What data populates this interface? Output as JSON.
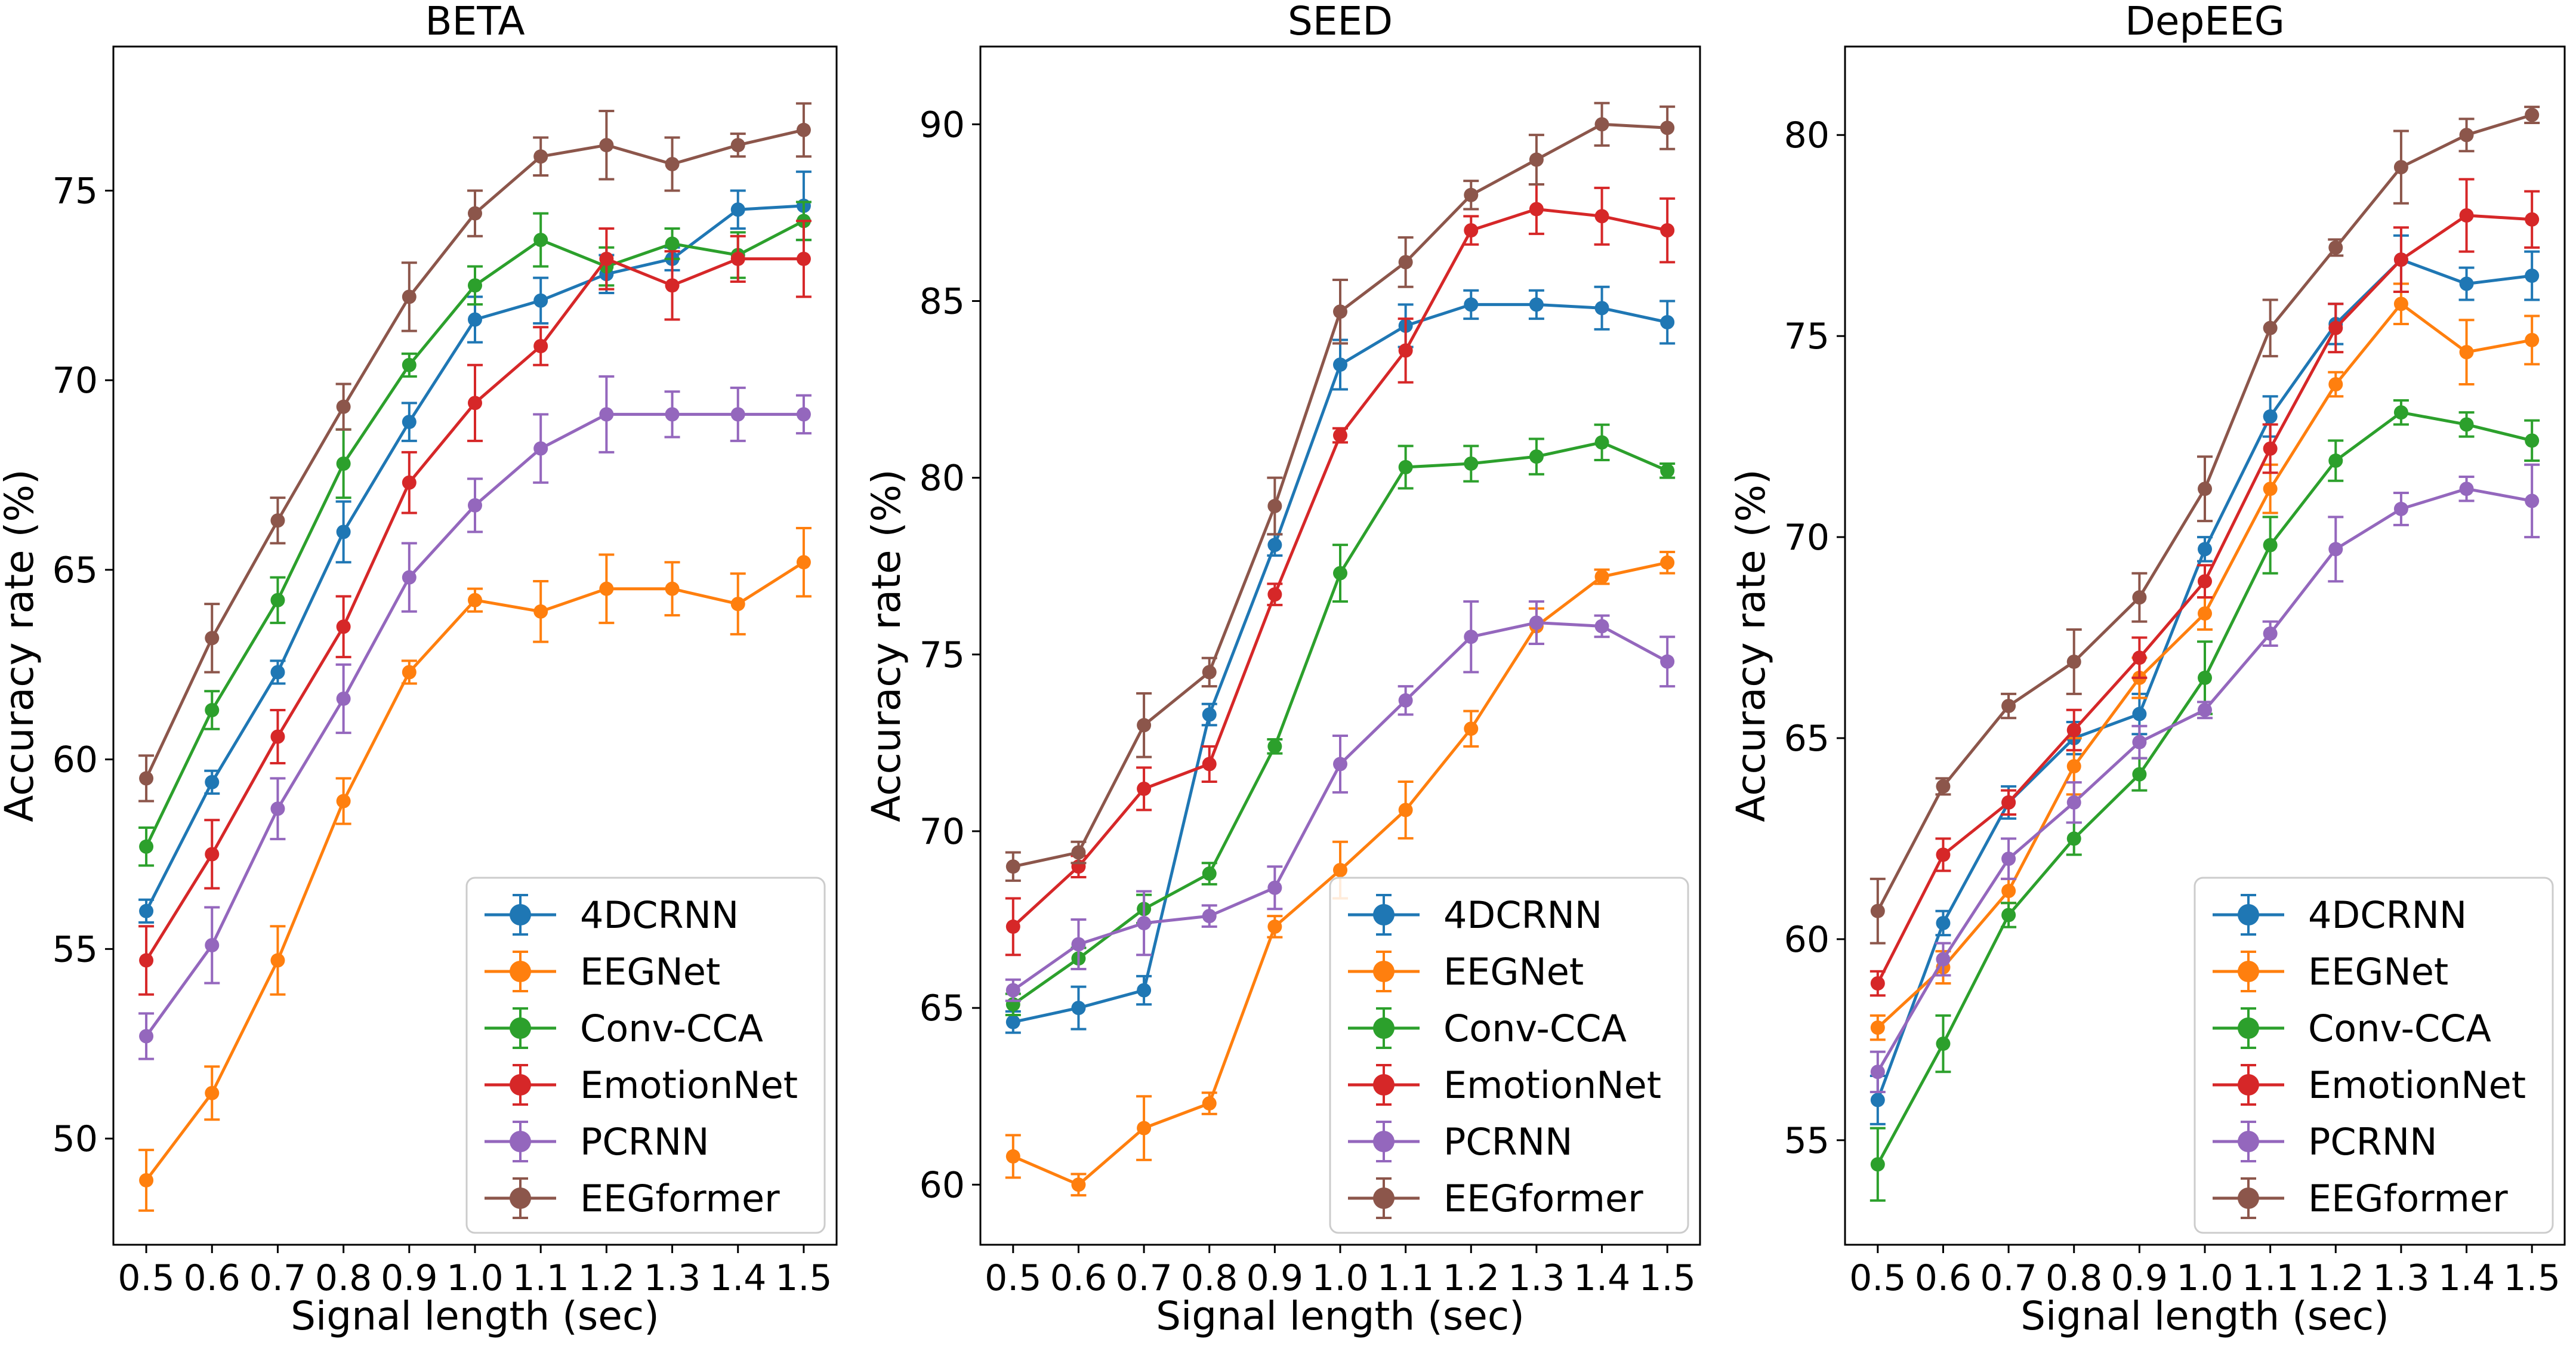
{
  "chart_data": [
    {
      "type": "line",
      "title": "BETA",
      "xlabel": "Signal length (sec)",
      "ylabel": "Accuracy rate (%)",
      "x": [
        0.5,
        0.6,
        0.7,
        0.8,
        0.9,
        1.0,
        1.1,
        1.2,
        1.3,
        1.4,
        1.5
      ],
      "x_tick_labels": [
        "0.5",
        "0.6",
        "0.7",
        "0.8",
        "0.9",
        "1.0",
        "1.1",
        "1.2",
        "1.3",
        "1.4",
        "1.5"
      ],
      "xlim": [
        0.45,
        1.55
      ],
      "ylim": [
        47.2,
        78.8
      ],
      "yticks": [
        50,
        55,
        60,
        65,
        70,
        75
      ],
      "y_tick_labels": [
        "50",
        "55",
        "60",
        "65",
        "70",
        "75"
      ],
      "legend_position": "lower-right",
      "series": [
        {
          "name": "4DCRNN",
          "color": "#1f77b4",
          "values": [
            56.0,
            59.4,
            62.3,
            66.0,
            68.9,
            71.6,
            72.1,
            72.8,
            73.2,
            74.5,
            74.6
          ],
          "errors": [
            0.3,
            0.3,
            0.3,
            0.8,
            0.5,
            0.6,
            0.6,
            0.5,
            0.3,
            0.5,
            0.9
          ]
        },
        {
          "name": "EEGNet",
          "color": "#ff7f0e",
          "values": [
            48.9,
            51.2,
            54.7,
            58.9,
            62.3,
            64.2,
            63.9,
            64.5,
            64.5,
            64.1,
            65.2
          ],
          "errors": [
            0.8,
            0.7,
            0.9,
            0.6,
            0.3,
            0.3,
            0.8,
            0.9,
            0.7,
            0.8,
            0.9
          ]
        },
        {
          "name": "Conv-CCA",
          "color": "#2ca02c",
          "values": [
            57.7,
            61.3,
            64.2,
            67.8,
            70.4,
            72.5,
            73.7,
            73.0,
            73.6,
            73.3,
            74.2
          ],
          "errors": [
            0.5,
            0.5,
            0.6,
            0.9,
            0.3,
            0.5,
            0.7,
            0.5,
            0.4,
            0.6,
            0.5
          ]
        },
        {
          "name": "EmotionNet",
          "color": "#d62728",
          "values": [
            54.7,
            57.5,
            60.6,
            63.5,
            67.3,
            69.4,
            70.9,
            73.2,
            72.5,
            73.2,
            73.2
          ],
          "errors": [
            0.9,
            0.9,
            0.7,
            0.8,
            0.8,
            1.0,
            0.5,
            0.8,
            0.9,
            0.6,
            1.0
          ]
        },
        {
          "name": "PCRNN",
          "color": "#9467bd",
          "values": [
            52.7,
            55.1,
            58.7,
            61.6,
            64.8,
            66.7,
            68.2,
            69.1,
            69.1,
            69.1,
            69.1
          ],
          "errors": [
            0.6,
            1.0,
            0.8,
            0.9,
            0.9,
            0.7,
            0.9,
            1.0,
            0.6,
            0.7,
            0.5
          ]
        },
        {
          "name": "EEGformer",
          "color": "#8c564b",
          "values": [
            59.5,
            63.2,
            66.3,
            69.3,
            72.2,
            74.4,
            75.9,
            76.2,
            75.7,
            76.2,
            76.6
          ],
          "errors": [
            0.6,
            0.9,
            0.6,
            0.6,
            0.9,
            0.6,
            0.5,
            0.9,
            0.7,
            0.3,
            0.7
          ]
        }
      ]
    },
    {
      "type": "line",
      "title": "SEED",
      "xlabel": "Signal length (sec)",
      "ylabel": "Accuracy rate (%)",
      "x": [
        0.5,
        0.6,
        0.7,
        0.8,
        0.9,
        1.0,
        1.1,
        1.2,
        1.3,
        1.4,
        1.5
      ],
      "x_tick_labels": [
        "0.5",
        "0.6",
        "0.7",
        "0.8",
        "0.9",
        "1.0",
        "1.1",
        "1.2",
        "1.3",
        "1.4",
        "1.5"
      ],
      "xlim": [
        0.45,
        1.55
      ],
      "ylim": [
        58.3,
        92.2
      ],
      "yticks": [
        60,
        65,
        70,
        75,
        80,
        85,
        90
      ],
      "y_tick_labels": [
        "60",
        "65",
        "70",
        "75",
        "80",
        "85",
        "90"
      ],
      "legend_position": "lower-right",
      "series": [
        {
          "name": "4DCRNN",
          "color": "#1f77b4",
          "values": [
            64.6,
            65.0,
            65.5,
            73.3,
            78.1,
            83.2,
            84.3,
            84.9,
            84.9,
            84.8,
            84.4
          ],
          "errors": [
            0.3,
            0.6,
            0.4,
            0.3,
            0.3,
            0.7,
            0.6,
            0.4,
            0.4,
            0.6,
            0.6
          ]
        },
        {
          "name": "EEGNet",
          "color": "#ff7f0e",
          "values": [
            60.8,
            60.0,
            61.6,
            62.3,
            67.3,
            68.9,
            70.6,
            72.9,
            75.8,
            77.2,
            77.6
          ],
          "errors": [
            0.6,
            0.3,
            0.9,
            0.3,
            0.3,
            0.8,
            0.8,
            0.5,
            0.5,
            0.2,
            0.3
          ]
        },
        {
          "name": "Conv-CCA",
          "color": "#2ca02c",
          "values": [
            65.1,
            66.4,
            67.8,
            68.8,
            72.4,
            77.3,
            80.3,
            80.4,
            80.6,
            81.0,
            80.2
          ],
          "errors": [
            0.3,
            0.3,
            0.4,
            0.3,
            0.2,
            0.8,
            0.6,
            0.5,
            0.5,
            0.5,
            0.2
          ]
        },
        {
          "name": "EmotionNet",
          "color": "#d62728",
          "values": [
            67.3,
            69.0,
            71.2,
            71.9,
            76.7,
            81.2,
            83.6,
            87.0,
            87.6,
            87.4,
            87.0
          ],
          "errors": [
            0.8,
            0.3,
            0.6,
            0.5,
            0.3,
            0.2,
            0.9,
            0.4,
            0.7,
            0.8,
            0.9
          ]
        },
        {
          "name": "PCRNN",
          "color": "#9467bd",
          "values": [
            65.5,
            66.8,
            67.4,
            67.6,
            68.4,
            71.9,
            73.7,
            75.5,
            75.9,
            75.8,
            74.8
          ],
          "errors": [
            0.3,
            0.7,
            0.9,
            0.3,
            0.6,
            0.8,
            0.4,
            1.0,
            0.6,
            0.3,
            0.7
          ]
        },
        {
          "name": "EEGformer",
          "color": "#8c564b",
          "values": [
            69.0,
            69.4,
            73.0,
            74.5,
            79.2,
            84.7,
            86.1,
            88.0,
            89.0,
            90.0,
            89.9
          ],
          "errors": [
            0.4,
            0.3,
            0.9,
            0.4,
            0.8,
            0.9,
            0.7,
            0.4,
            0.7,
            0.6,
            0.6
          ]
        }
      ]
    },
    {
      "type": "line",
      "title": "DepEEG",
      "xlabel": "Signal length (sec)",
      "ylabel": "Accuracy rate (%)",
      "x": [
        0.5,
        0.6,
        0.7,
        0.8,
        0.9,
        1.0,
        1.1,
        1.2,
        1.3,
        1.4,
        1.5
      ],
      "x_tick_labels": [
        "0.5",
        "0.6",
        "0.7",
        "0.8",
        "0.9",
        "1.0",
        "1.1",
        "1.2",
        "1.3",
        "1.4",
        "1.5"
      ],
      "xlim": [
        0.45,
        1.55
      ],
      "ylim": [
        52.4,
        82.2
      ],
      "yticks": [
        55,
        60,
        65,
        70,
        75,
        80
      ],
      "y_tick_labels": [
        "55",
        "60",
        "65",
        "70",
        "75",
        "80"
      ],
      "legend_position": "lower-right",
      "series": [
        {
          "name": "4DCRNN",
          "color": "#1f77b4",
          "values": [
            56.0,
            60.4,
            63.4,
            65.0,
            65.6,
            69.7,
            73.0,
            75.3,
            76.9,
            76.3,
            76.5
          ],
          "errors": [
            0.6,
            0.3,
            0.4,
            0.4,
            0.5,
            0.3,
            0.5,
            0.5,
            0.6,
            0.4,
            0.6
          ]
        },
        {
          "name": "EEGNet",
          "color": "#ff7f0e",
          "values": [
            57.8,
            59.3,
            61.2,
            64.3,
            66.5,
            68.1,
            71.2,
            73.8,
            75.8,
            74.6,
            74.9
          ],
          "errors": [
            0.3,
            0.4,
            0.3,
            0.7,
            0.5,
            0.4,
            0.6,
            0.3,
            0.5,
            0.8,
            0.6
          ]
        },
        {
          "name": "Conv-CCA",
          "color": "#2ca02c",
          "values": [
            54.4,
            57.4,
            60.6,
            62.5,
            64.1,
            66.5,
            69.8,
            71.9,
            73.1,
            72.8,
            72.4
          ],
          "errors": [
            0.9,
            0.7,
            0.3,
            0.4,
            0.4,
            0.9,
            0.7,
            0.5,
            0.3,
            0.3,
            0.5
          ]
        },
        {
          "name": "EmotionNet",
          "color": "#d62728",
          "values": [
            58.9,
            62.1,
            63.4,
            65.2,
            67.0,
            68.9,
            72.2,
            75.2,
            76.9,
            78.0,
            77.9
          ],
          "errors": [
            0.3,
            0.4,
            0.3,
            0.5,
            0.5,
            0.4,
            0.6,
            0.6,
            0.8,
            0.9,
            0.7
          ]
        },
        {
          "name": "PCRNN",
          "color": "#9467bd",
          "values": [
            56.7,
            59.5,
            62.0,
            63.4,
            64.9,
            65.7,
            67.6,
            69.7,
            70.7,
            71.2,
            70.9
          ],
          "errors": [
            0.5,
            0.4,
            0.5,
            0.5,
            0.4,
            0.2,
            0.3,
            0.8,
            0.4,
            0.3,
            0.9
          ]
        },
        {
          "name": "EEGformer",
          "color": "#8c564b",
          "values": [
            60.7,
            63.8,
            65.8,
            66.9,
            68.5,
            71.2,
            75.2,
            77.2,
            79.2,
            80.0,
            80.5
          ],
          "errors": [
            0.8,
            0.2,
            0.3,
            0.8,
            0.6,
            0.8,
            0.7,
            0.2,
            0.9,
            0.4,
            0.2
          ]
        }
      ]
    }
  ]
}
